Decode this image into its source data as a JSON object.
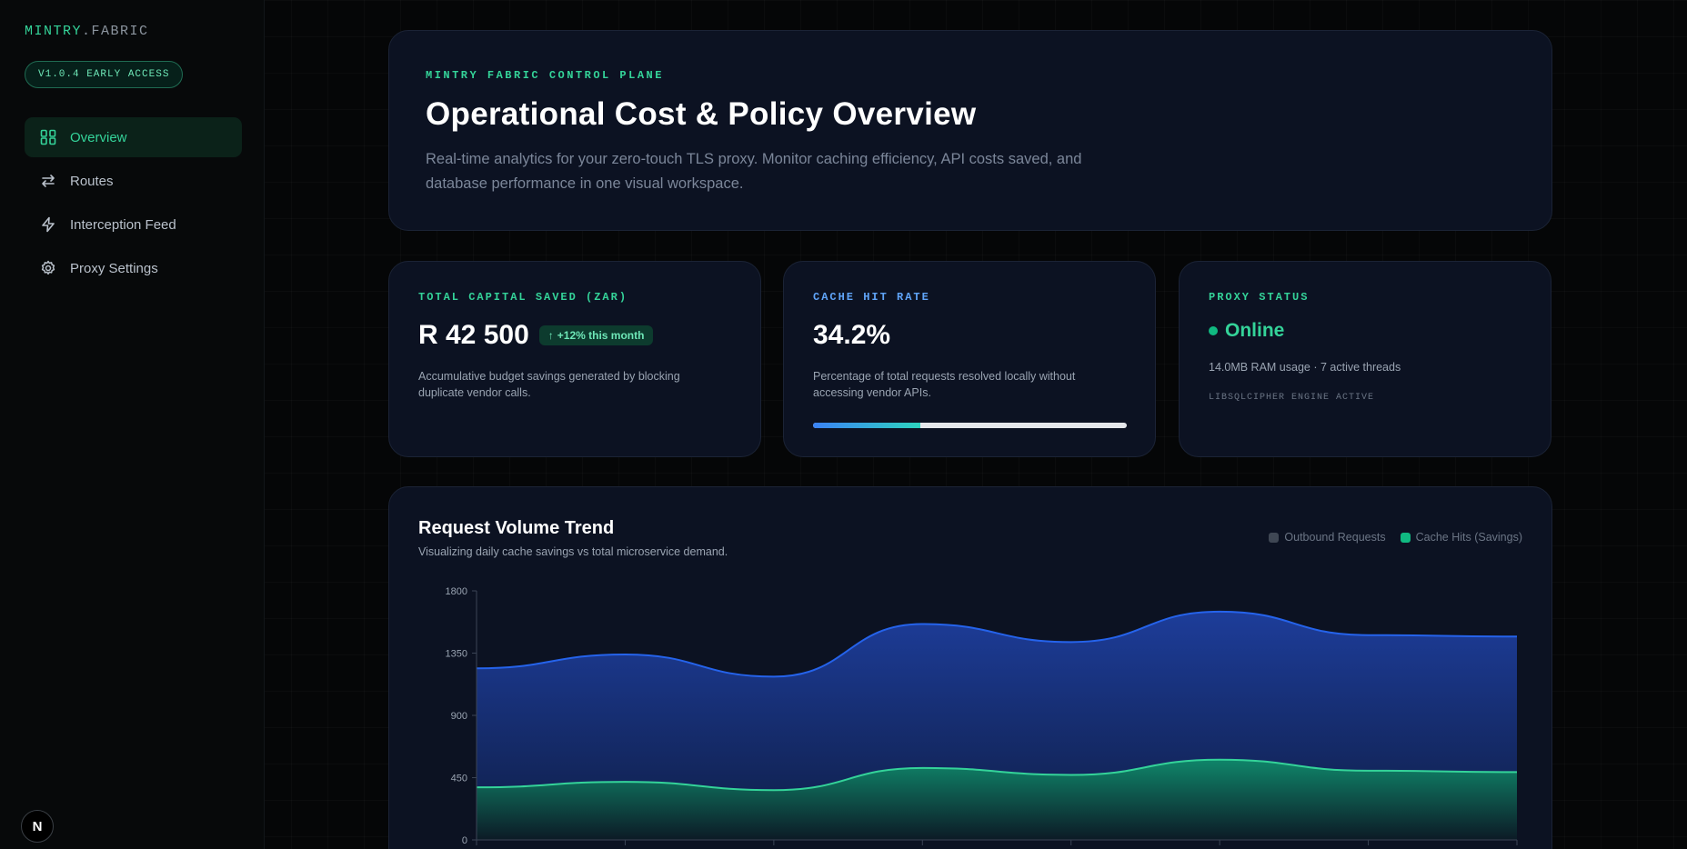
{
  "sidebar": {
    "brand_primary": "MINTRY",
    "brand_secondary": ".FABRIC",
    "version": "V1.0.4 EARLY ACCESS",
    "items": [
      {
        "label": "Overview",
        "icon": "grid-icon",
        "active": true
      },
      {
        "label": "Routes",
        "icon": "arrows-swap-icon",
        "active": false
      },
      {
        "label": "Interception Feed",
        "icon": "lightning-icon",
        "active": false
      },
      {
        "label": "Proxy Settings",
        "icon": "gear-icon",
        "active": false
      }
    ],
    "footer_button": "N"
  },
  "hero": {
    "eyebrow": "MINTRY FABRIC CONTROL PLANE",
    "title": "Operational Cost & Policy Overview",
    "description": "Real-time analytics for your zero-touch TLS proxy. Monitor caching efficiency, API costs saved, and database performance in one visual workspace."
  },
  "cards": {
    "savings": {
      "label": "TOTAL CAPITAL SAVED (ZAR)",
      "value": "R 42 500",
      "badge": "+12% this month",
      "description": "Accumulative budget savings generated by blocking duplicate vendor calls."
    },
    "cache": {
      "label": "CACHE HIT RATE",
      "value": "34.2%",
      "progress_percent": 34.2,
      "description": "Percentage of total requests resolved locally without accessing vendor APIs."
    },
    "proxy": {
      "label": "PROXY STATUS",
      "status": "Online",
      "meta": "14.0MB RAM usage · 7 active threads",
      "engine": "LIBSQLCIPHER ENGINE ACTIVE"
    }
  },
  "colors": {
    "accent_green": "#34d399",
    "accent_blue": "#60a5fa",
    "outbound_series": "#1d4ed8",
    "cache_series": "#10b981"
  },
  "chart_data": {
    "type": "area",
    "title": "Request Volume Trend",
    "subtitle": "Visualizing daily cache savings vs total microservice demand.",
    "legend_position": "top-right",
    "ylim": [
      0,
      1800
    ],
    "y_ticks": [
      0,
      450,
      900,
      1350,
      1800
    ],
    "x": [
      0,
      1,
      2,
      3,
      4,
      5,
      6,
      7
    ],
    "series": [
      {
        "name": "Outbound Requests",
        "color": "#1d4ed8",
        "values": [
          1240,
          1340,
          1180,
          1560,
          1430,
          1650,
          1480,
          1470
        ]
      },
      {
        "name": "Cache Hits (Savings)",
        "color": "#10b981",
        "values": [
          380,
          420,
          360,
          520,
          470,
          580,
          500,
          490
        ]
      }
    ]
  }
}
